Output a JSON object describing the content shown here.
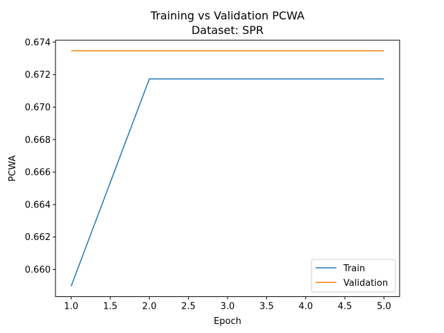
{
  "chart_data": {
    "type": "line",
    "title": "Training vs Validation PCWA",
    "subtitle": "Dataset: SPR",
    "xlabel": "Epoch",
    "ylabel": "PCWA",
    "x": [
      1,
      2,
      3,
      4,
      5
    ],
    "series": [
      {
        "name": "Train",
        "color": "#1f77b4",
        "values": [
          0.65897,
          0.67174,
          0.67174,
          0.67174,
          0.67174
        ]
      },
      {
        "name": "Validation",
        "color": "#ff7f0e",
        "values": [
          0.67347,
          0.67347,
          0.67347,
          0.67347,
          0.67347
        ]
      }
    ],
    "xlim": [
      0.8,
      5.2
    ],
    "ylim": [
      0.65833,
      0.67412
    ],
    "xticks": [
      "1.0",
      "1.5",
      "2.0",
      "2.5",
      "3.0",
      "3.5",
      "4.0",
      "4.5",
      "5.0"
    ],
    "yticks": [
      "0.660",
      "0.662",
      "0.664",
      "0.666",
      "0.668",
      "0.670",
      "0.672",
      "0.674"
    ],
    "grid": false,
    "legend_position": "lower-right"
  }
}
